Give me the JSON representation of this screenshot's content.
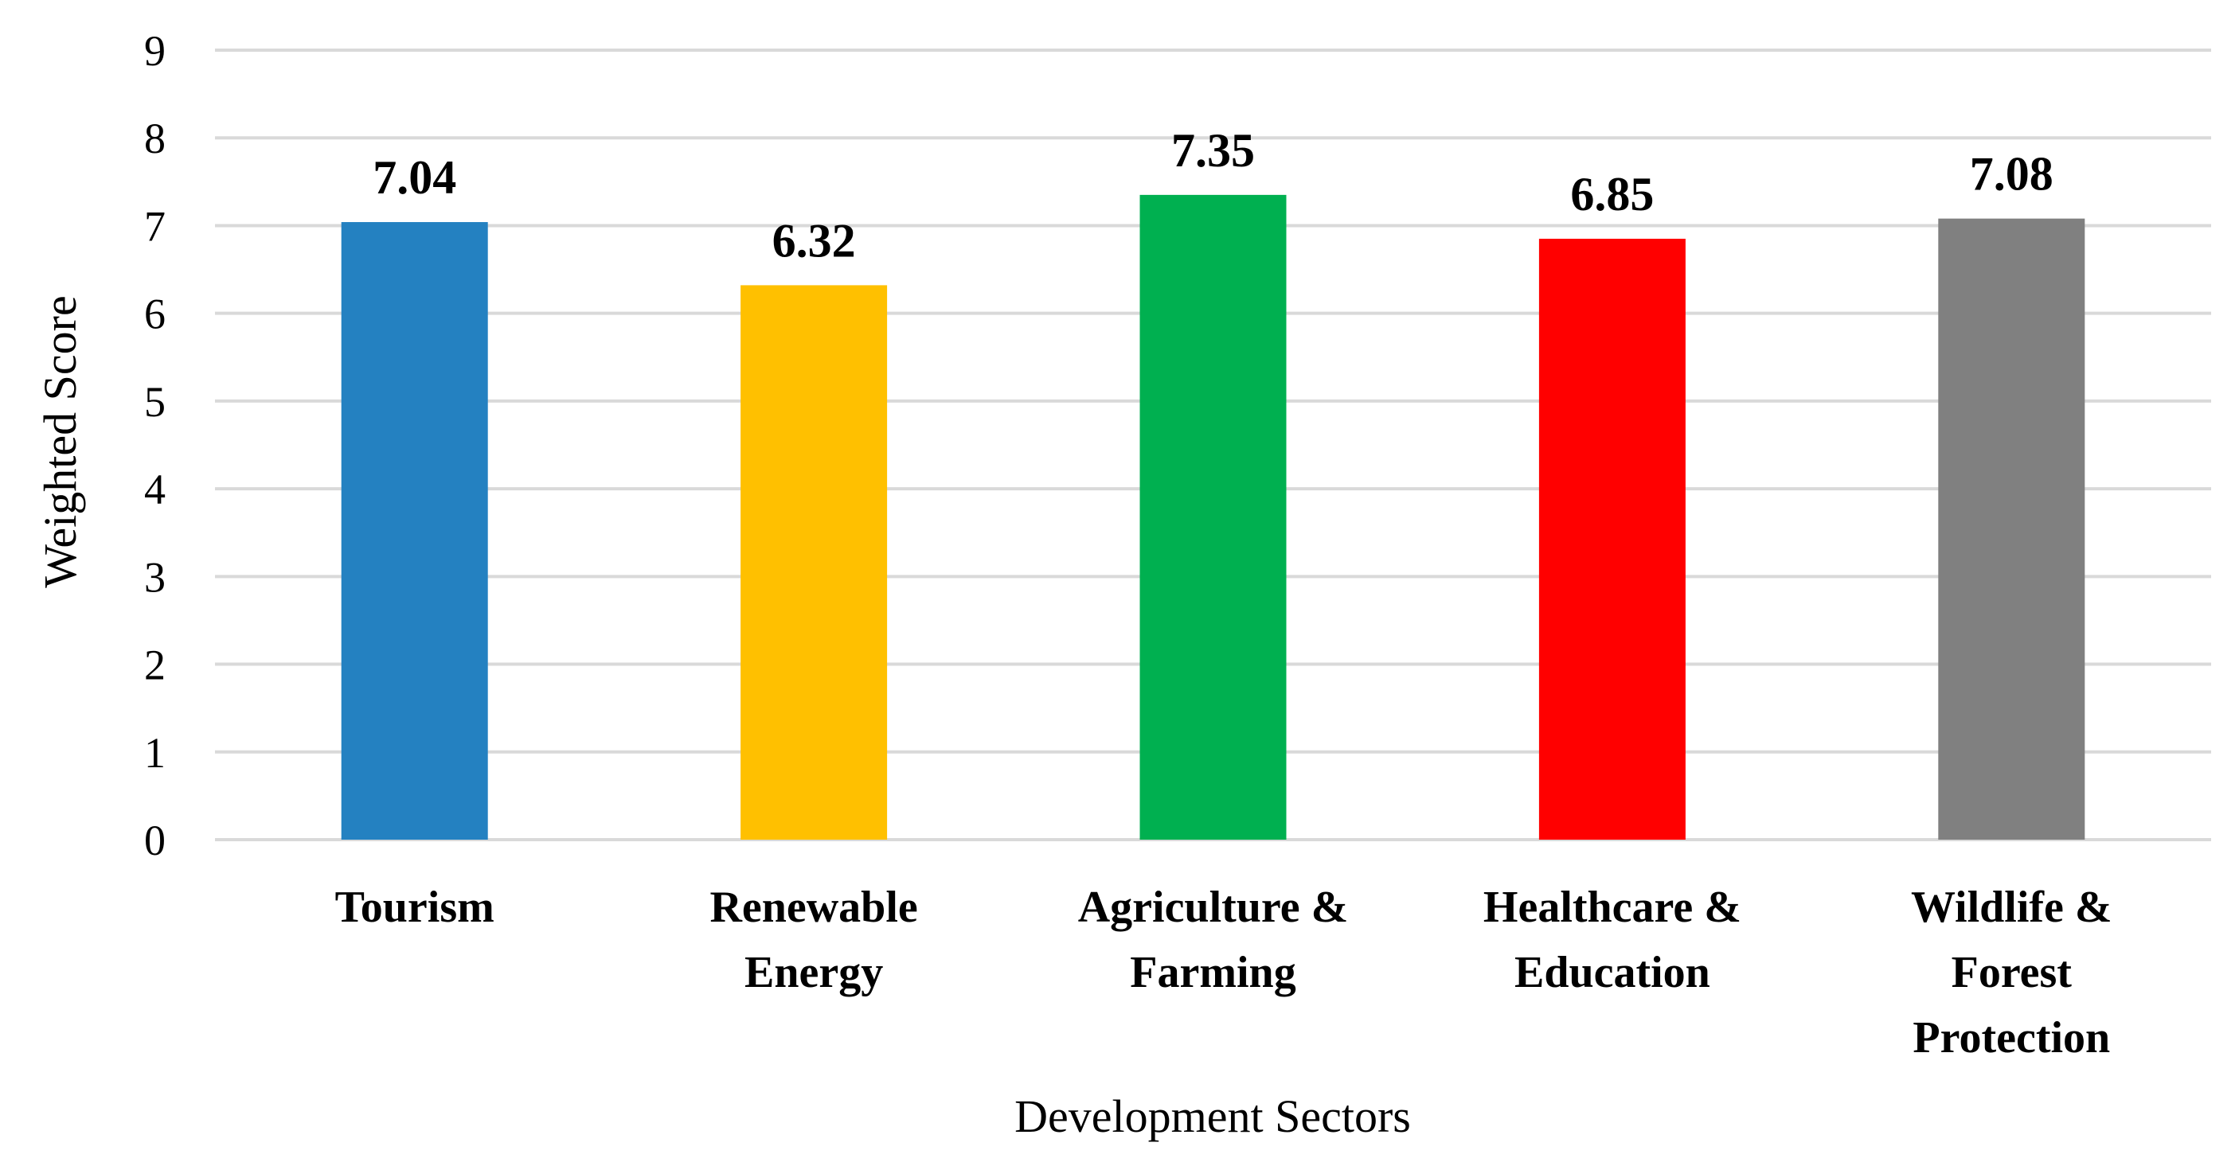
{
  "chart_data": {
    "type": "bar",
    "title": "",
    "xlabel": "Development Sectors",
    "ylabel": "Weighted Score",
    "ylim": [
      0,
      9
    ],
    "yticks": [
      "0",
      "1",
      "2",
      "3",
      "4",
      "5",
      "6",
      "7",
      "8",
      "9"
    ],
    "grid": true,
    "legend": "none",
    "categories": [
      [
        "Tourism"
      ],
      [
        "Renewable",
        "Energy"
      ],
      [
        "Agriculture &",
        "Farming"
      ],
      [
        "Healthcare &",
        "Education"
      ],
      [
        "Wildlife &",
        "Forest",
        "Protection"
      ]
    ],
    "values": [
      7.04,
      6.32,
      7.35,
      6.85,
      7.08
    ],
    "data_labels": [
      "7.04",
      "6.32",
      "7.35",
      "6.85",
      "7.08"
    ],
    "colors": [
      "#2481C1",
      "#FFC000",
      "#00B050",
      "#FF0000",
      "#808080"
    ],
    "grid_color": "#D9D9D9"
  }
}
